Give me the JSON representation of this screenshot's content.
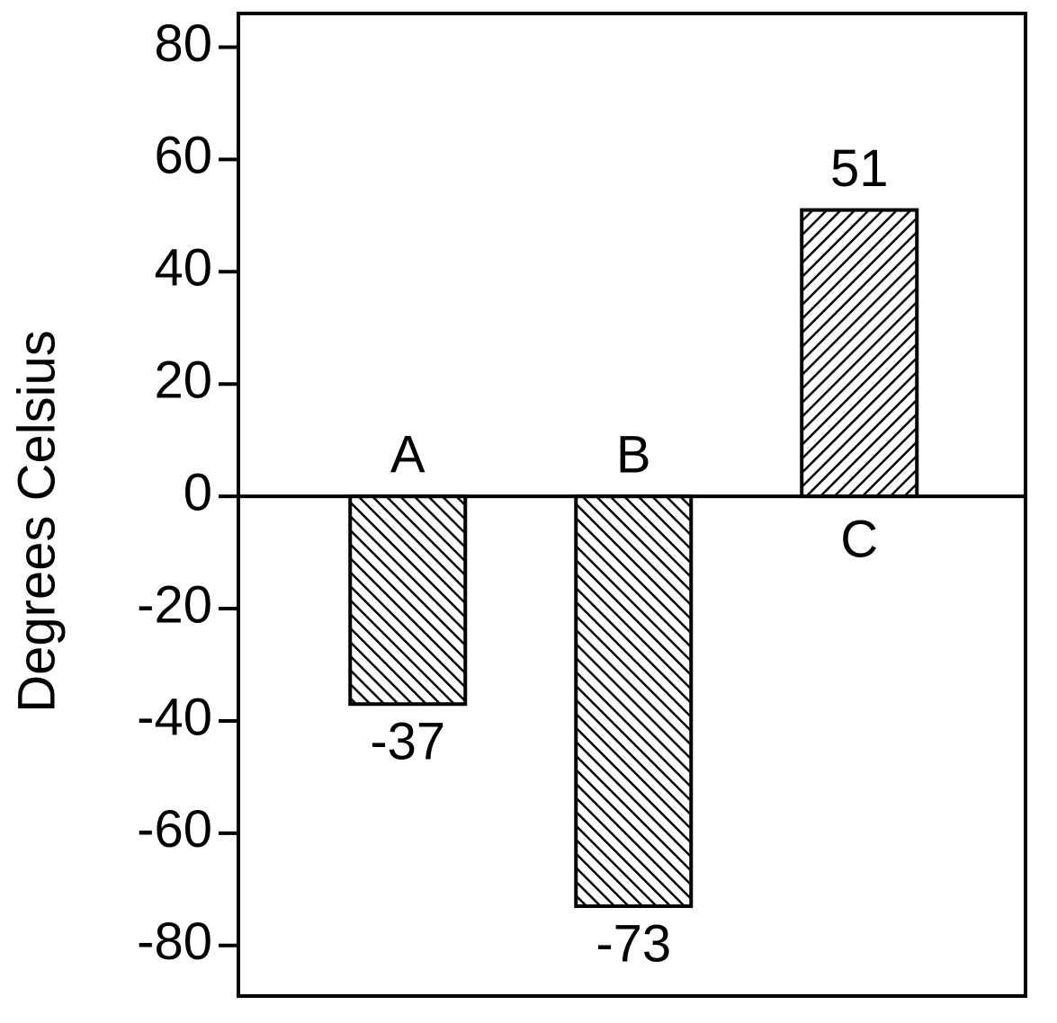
{
  "chart_data": {
    "type": "bar",
    "ylabel": "Degrees Celsius",
    "categories": [
      "A",
      "B",
      "C"
    ],
    "values": [
      -37,
      -73,
      51
    ],
    "color": "#000000",
    "ylim": [
      -89,
      86
    ],
    "yticks": [
      -80,
      -60,
      -40,
      -20,
      0,
      20,
      40,
      60,
      80
    ],
    "grid": false
  }
}
